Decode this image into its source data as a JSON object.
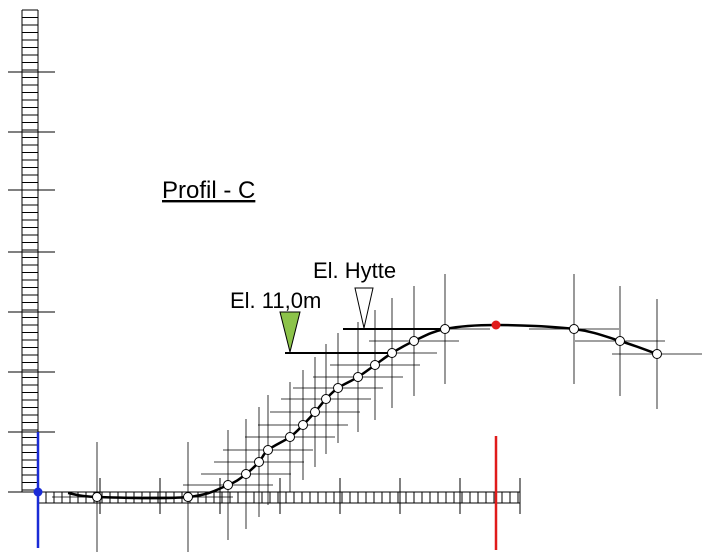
{
  "title": "Profil - C",
  "labels": {
    "cabin": "El. Hytte",
    "level": "El. 11,0m"
  }
}
